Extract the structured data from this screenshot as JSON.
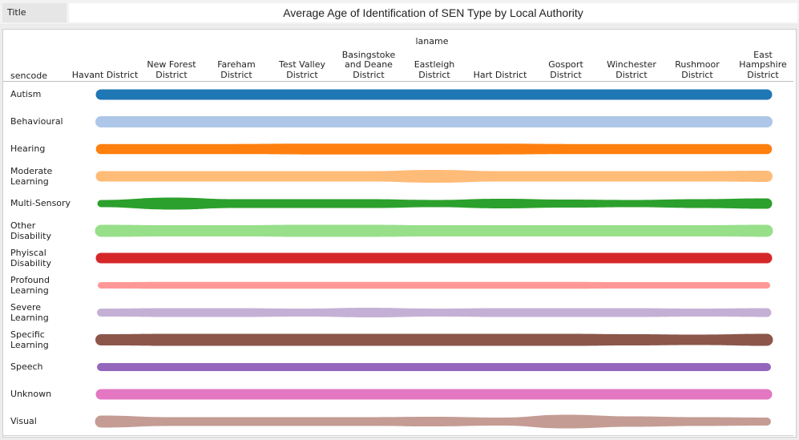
{
  "header": {
    "tab_label": "Title",
    "title": "Average Age of Identification of SEN Type by Local Authority"
  },
  "chart_data": {
    "type": "area",
    "column_field": "laname",
    "row_field": "sencode",
    "columns": [
      "Havant District",
      "New Forest District",
      "Fareham District",
      "Test Valley District",
      "Basingstoke and Deane District",
      "Eastleigh District",
      "Hart District",
      "Gosport District",
      "Winchester District",
      "Rushmoor District",
      "East Hampshire District"
    ],
    "rows": [
      {
        "name": "Autism",
        "color": "#1f77b4",
        "values": [
          6,
          6,
          6,
          6,
          6,
          6,
          6,
          6,
          6,
          6,
          6
        ]
      },
      {
        "name": "Behavioural",
        "color": "#aec7e8",
        "values": [
          6.5,
          6.5,
          6.5,
          6.5,
          6.5,
          6.5,
          6.5,
          6.5,
          6.5,
          6.5,
          6.5
        ]
      },
      {
        "name": "Hearing",
        "color": "#ff7f0e",
        "values": [
          5.8,
          5.8,
          5.8,
          6.2,
          6.2,
          6.2,
          6.2,
          5.8,
          5.8,
          5.8,
          5.8
        ]
      },
      {
        "name": "Moderate Learning",
        "color": "#ffbb78",
        "values": [
          6,
          6,
          6,
          6,
          6,
          7.5,
          6,
          6,
          6,
          6,
          6.5
        ]
      },
      {
        "name": "Multi-Sensory",
        "color": "#2ca02c",
        "values": [
          4,
          7,
          5,
          5,
          5,
          4,
          5.5,
          4.5,
          4,
          5,
          6
        ]
      },
      {
        "name": "Other Disability",
        "color": "#98df8a",
        "values": [
          7,
          6.5,
          6.5,
          7,
          7,
          6.5,
          6.5,
          6.5,
          6.5,
          6.5,
          7
        ]
      },
      {
        "name": "Phyiscal Disability",
        "color": "#d62728",
        "values": [
          6,
          6,
          6,
          6,
          6,
          6,
          6,
          6,
          6,
          6,
          6
        ]
      },
      {
        "name": "Profound Learning",
        "color": "#ff9896",
        "values": [
          3.5,
          3.8,
          3.8,
          3.8,
          3.8,
          3.8,
          3.8,
          3.8,
          3.5,
          3.5,
          3.5
        ]
      },
      {
        "name": "Severe Learning",
        "color": "#c5b0d5",
        "values": [
          4.5,
          5,
          5,
          4.5,
          5.5,
          4.5,
          5,
          5,
          5,
          4.5,
          5
        ]
      },
      {
        "name": "Specific Learning",
        "color": "#8c564b",
        "values": [
          6.5,
          7,
          7,
          7,
          7,
          7,
          7,
          7,
          6.5,
          6,
          7
        ]
      },
      {
        "name": "Speech",
        "color": "#9467bd",
        "values": [
          4.5,
          4.5,
          4.5,
          4.5,
          4.5,
          4.5,
          4.5,
          4.5,
          4.5,
          4.5,
          4.5
        ]
      },
      {
        "name": "Unknown",
        "color": "#e377c2",
        "values": [
          6,
          6,
          6,
          6,
          6,
          6,
          6,
          6,
          6,
          6,
          6
        ]
      },
      {
        "name": "Visual",
        "color": "#c49c94",
        "values": [
          7,
          5,
          5,
          5,
          5,
          5.5,
          4.5,
          8,
          6,
          5,
          4.5
        ]
      }
    ]
  }
}
